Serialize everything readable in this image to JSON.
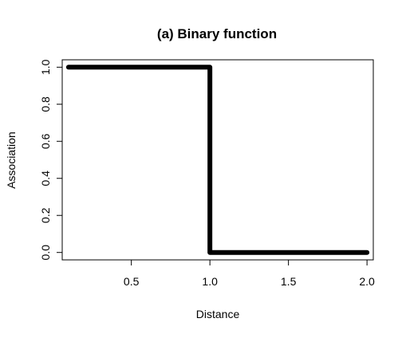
{
  "chart_data": {
    "type": "line",
    "title": "(a) Binary function",
    "xlabel": "Distance",
    "ylabel": "Association",
    "xlim": [
      0.06,
      2.04
    ],
    "ylim": [
      -0.04,
      1.04
    ],
    "x_ticks": [
      0.5,
      1.0,
      1.5,
      2.0
    ],
    "x_tick_labels": [
      "0.5",
      "1.0",
      "1.5",
      "2.0"
    ],
    "y_ticks": [
      0.0,
      0.2,
      0.4,
      0.6,
      0.8,
      1.0
    ],
    "y_tick_labels": [
      "0.0",
      "0.2",
      "0.4",
      "0.6",
      "0.8",
      "1.0"
    ],
    "grid": false,
    "series": [
      {
        "color": "#000000",
        "x": [
          0.1,
          1.0,
          1.0,
          1.0,
          1.0,
          2.0
        ],
        "y": [
          1.0,
          1.0,
          0.5,
          0.5,
          0.0,
          0.0
        ]
      }
    ]
  }
}
